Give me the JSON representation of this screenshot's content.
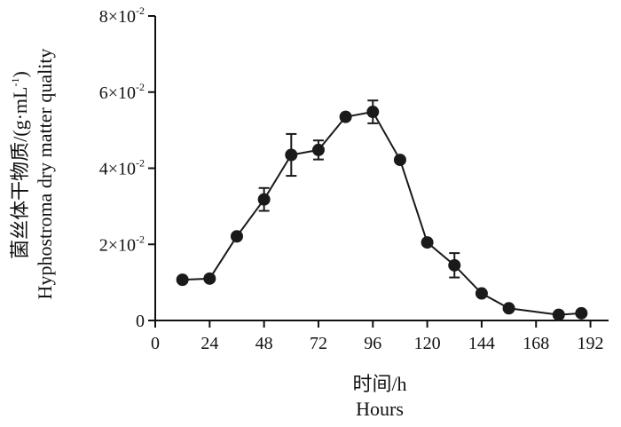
{
  "chart_data": {
    "type": "line",
    "xlabel_cn": "时间/h",
    "xlabel_en": "Hours",
    "ylabel_cn": "菌丝体干物质/(g·mL",
    "ylabel_unit_sup": "-1",
    "ylabel_close": ")",
    "ylabel_en": "Hyphostroma dry matter quality",
    "xlim": [
      0,
      200
    ],
    "ylim": [
      0,
      0.08
    ],
    "x_ticks": [
      "0",
      "24",
      "48",
      "72",
      "96",
      "120",
      "144",
      "168",
      "192"
    ],
    "x_tick_values": [
      0,
      24,
      48,
      72,
      96,
      120,
      144,
      168,
      192
    ],
    "y_ticks": [
      {
        "value": 0,
        "label": "0",
        "exp": ""
      },
      {
        "value": 0.02,
        "label": "2×10",
        "exp": "-2"
      },
      {
        "value": 0.04,
        "label": "4×10",
        "exp": "-2"
      },
      {
        "value": 0.06,
        "label": "6×10",
        "exp": "-2"
      },
      {
        "value": 0.08,
        "label": "8×10",
        "exp": "-2"
      }
    ],
    "series": [
      {
        "points": [
          {
            "x": 12,
            "y": 0.0107,
            "err": 0
          },
          {
            "x": 24,
            "y": 0.011,
            "err": 0
          },
          {
            "x": 36,
            "y": 0.0221,
            "err": 0
          },
          {
            "x": 48,
            "y": 0.0318,
            "err": 0.003
          },
          {
            "x": 60,
            "y": 0.0435,
            "err": 0.0055
          },
          {
            "x": 72,
            "y": 0.0448,
            "err": 0.0025
          },
          {
            "x": 84,
            "y": 0.0535,
            "err": 0
          },
          {
            "x": 96,
            "y": 0.0548,
            "err": 0.003
          },
          {
            "x": 108,
            "y": 0.0422,
            "err": 0
          },
          {
            "x": 120,
            "y": 0.0205,
            "err": 0
          },
          {
            "x": 132,
            "y": 0.0145,
            "err": 0.0032
          },
          {
            "x": 144,
            "y": 0.0071,
            "err": 0
          },
          {
            "x": 156,
            "y": 0.0032,
            "err": 0
          },
          {
            "x": 178,
            "y": 0.0015,
            "err": 0
          },
          {
            "x": 188,
            "y": 0.0019,
            "err": 0
          }
        ]
      }
    ],
    "colors": {
      "line": "#1a1a1a",
      "marker": "#1a1a1a",
      "axis": "#111111"
    }
  }
}
